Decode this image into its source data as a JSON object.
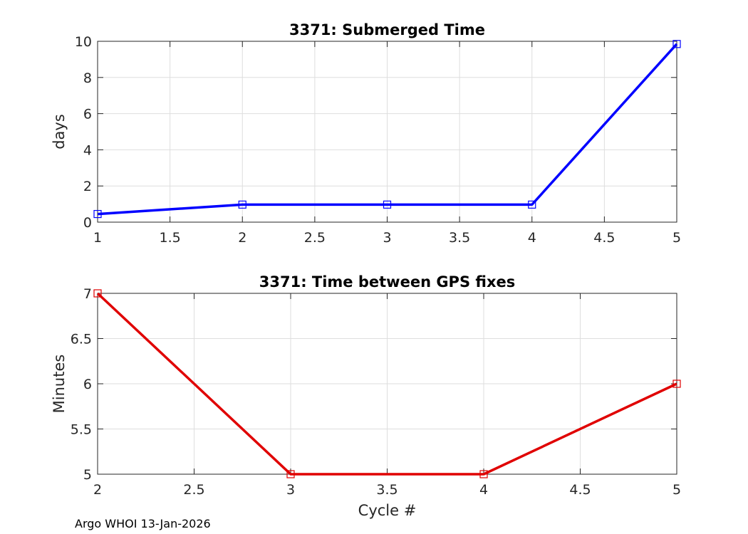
{
  "footer_text": "Argo WHOI 13-Jan-2026",
  "chart_data": [
    {
      "type": "line",
      "title": "3371: Submerged Time",
      "xlabel": "",
      "ylabel": "days",
      "xlim": [
        1,
        5
      ],
      "ylim": [
        0,
        10
      ],
      "xticks": [
        1,
        1.5,
        2,
        2.5,
        3,
        3.5,
        4,
        4.5,
        5
      ],
      "xtick_labels": [
        "1",
        "1.5",
        "2",
        "2.5",
        "3",
        "3.5",
        "4",
        "4.5",
        "5"
      ],
      "yticks": [
        0,
        2,
        4,
        6,
        8,
        10
      ],
      "ytick_labels": [
        "0",
        "2",
        "4",
        "6",
        "8",
        "10"
      ],
      "grid": true,
      "marker": "square",
      "color": "#0000ff",
      "series": [
        {
          "x": [
            1,
            2,
            3,
            4,
            5
          ],
          "values": [
            0.45,
            0.97,
            0.97,
            0.97,
            9.85
          ]
        }
      ]
    },
    {
      "type": "line",
      "title": "3371: Time between GPS fixes",
      "xlabel": "Cycle #",
      "ylabel": "Minutes",
      "xlim": [
        2,
        5
      ],
      "ylim": [
        5,
        7
      ],
      "xticks": [
        2,
        2.5,
        3,
        3.5,
        4,
        4.5,
        5
      ],
      "xtick_labels": [
        "2",
        "2.5",
        "3",
        "3.5",
        "4",
        "4.5",
        "5"
      ],
      "yticks": [
        5,
        5.5,
        6,
        6.5,
        7
      ],
      "ytick_labels": [
        "5",
        "5.5",
        "6",
        "6.5",
        "7"
      ],
      "grid": true,
      "marker": "square",
      "color": "#e00000",
      "series": [
        {
          "x": [
            2,
            3,
            4,
            5
          ],
          "values": [
            7,
            5,
            5,
            6
          ]
        }
      ]
    }
  ]
}
